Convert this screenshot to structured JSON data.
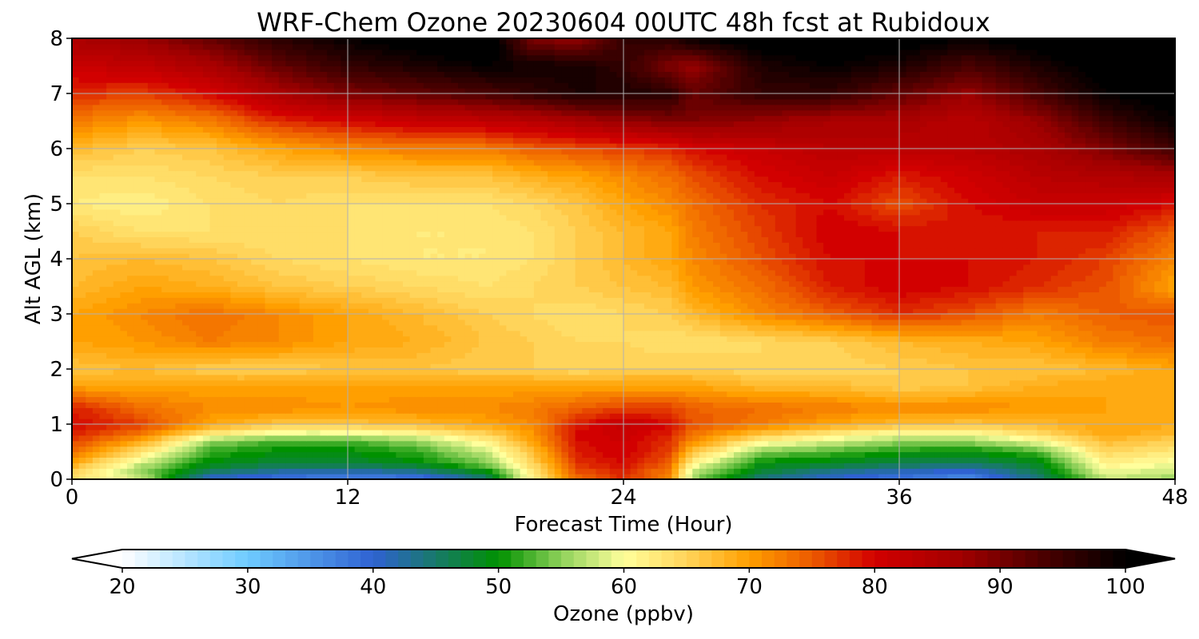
{
  "chart_data": {
    "type": "heatmap",
    "title": "WRF-Chem Ozone  20230604 00UTC 48h fcst at Rubidoux",
    "xlabel": "Forecast Time (Hour)",
    "ylabel": "Alt AGL (km)",
    "xlim": [
      0,
      48
    ],
    "ylim": [
      0,
      8
    ],
    "x_ticks": [
      0,
      12,
      24,
      36,
      48
    ],
    "y_ticks": [
      0,
      1,
      2,
      3,
      4,
      5,
      6,
      7,
      8
    ],
    "grid": true,
    "z_label": "Ozone  (ppbv)",
    "colorbar": {
      "orientation": "horizontal",
      "position": "bottom",
      "extend": "both",
      "range": [
        20,
        100
      ],
      "ticks": [
        20,
        30,
        40,
        50,
        60,
        70,
        80,
        90,
        100
      ],
      "under_color": "#ffffff",
      "over_color": "#000000",
      "color_stops": [
        {
          "v": 20,
          "c": "#ffffff"
        },
        {
          "v": 30,
          "c": "#6ecbff"
        },
        {
          "v": 40,
          "c": "#2f62d2"
        },
        {
          "v": 50,
          "c": "#009100"
        },
        {
          "v": 55,
          "c": "#8fd15a"
        },
        {
          "v": 60,
          "c": "#ffff9c"
        },
        {
          "v": 65,
          "c": "#ffd45a"
        },
        {
          "v": 70,
          "c": "#ff9f00"
        },
        {
          "v": 75,
          "c": "#ec5a00"
        },
        {
          "v": 80,
          "c": "#d20000"
        },
        {
          "v": 87,
          "c": "#a00000"
        },
        {
          "v": 93,
          "c": "#500000"
        },
        {
          "v": 100,
          "c": "#000000"
        }
      ]
    },
    "z_grid": {
      "x": [
        0,
        3,
        6,
        9,
        12,
        15,
        18,
        20,
        22,
        24,
        26,
        27,
        30,
        33,
        36,
        39,
        42,
        45,
        48
      ],
      "y": [
        0,
        0.15,
        0.3,
        0.5,
        0.7,
        0.85,
        1.0,
        1.3,
        1.7,
        2.0,
        2.5,
        3.0,
        3.5,
        4.0,
        4.5,
        5.0,
        5.5,
        6.0,
        6.5,
        7.0,
        7.5,
        8.0
      ],
      "z": [
        [
          64,
          58,
          40,
          38,
          36,
          37,
          44,
          62,
          74,
          78,
          72,
          56,
          44,
          40,
          38,
          36,
          44,
          58,
          56
        ],
        [
          66,
          56,
          46,
          43,
          42,
          44,
          50,
          63,
          76,
          79,
          73,
          58,
          48,
          44,
          42,
          40,
          47,
          60,
          58
        ],
        [
          70,
          58,
          50,
          48,
          48,
          50,
          55,
          65,
          78,
          80,
          75,
          62,
          50,
          49,
          47,
          46,
          49,
          62,
          60
        ],
        [
          74,
          64,
          52,
          50,
          50,
          52,
          58,
          67,
          79,
          81,
          77,
          67,
          55,
          53,
          51,
          50,
          53,
          65,
          63
        ],
        [
          77,
          70,
          56,
          53,
          53,
          56,
          62,
          70,
          80,
          81,
          78,
          72,
          62,
          59,
          56,
          56,
          60,
          68,
          66
        ],
        [
          79,
          74,
          64,
          60,
          60,
          62,
          66,
          71,
          80,
          82,
          79,
          74,
          68,
          64,
          61,
          61,
          65,
          70,
          68
        ],
        [
          80,
          77,
          70,
          67,
          67,
          68,
          70,
          72,
          79,
          83,
          80,
          76,
          73,
          70,
          68,
          67,
          68,
          70,
          69
        ],
        [
          79,
          74,
          72,
          72,
          71,
          72,
          72,
          73,
          75,
          77,
          77,
          75,
          74,
          73,
          72,
          72,
          71,
          70,
          70
        ],
        [
          70,
          70,
          70,
          70,
          70,
          70,
          70,
          70,
          70,
          70,
          70,
          70,
          68,
          68,
          66,
          67,
          69,
          70,
          69
        ],
        [
          67,
          68,
          66,
          66,
          67,
          67,
          66,
          66,
          65,
          66,
          66,
          66,
          65,
          65,
          66,
          67,
          67,
          68,
          70
        ],
        [
          70,
          71,
          73,
          72,
          70,
          69,
          67,
          66,
          65,
          65,
          64,
          64,
          65,
          66,
          68,
          69,
          70,
          73,
          74
        ],
        [
          70,
          72,
          74,
          72,
          70,
          68,
          66,
          65,
          64,
          65,
          66,
          68,
          72,
          75,
          78,
          76,
          73,
          75,
          76
        ],
        [
          68,
          70,
          69,
          67,
          66,
          65,
          64,
          65,
          66,
          67,
          68,
          71,
          74,
          79,
          81,
          80,
          78,
          76,
          70
        ],
        [
          67,
          68,
          67,
          65,
          64,
          63,
          63,
          64,
          66,
          68,
          70,
          72,
          76,
          80,
          80,
          80,
          79,
          77,
          72
        ],
        [
          66,
          64,
          64,
          64,
          64,
          63,
          63,
          64,
          66,
          68,
          70,
          73,
          77,
          81,
          80,
          79,
          79,
          79,
          75
        ],
        [
          63,
          62,
          64,
          65,
          64,
          64,
          64,
          65,
          67,
          70,
          72,
          74,
          78,
          80,
          76,
          80,
          82,
          82,
          80
        ],
        [
          64,
          64,
          65,
          66,
          66,
          67,
          67,
          69,
          70,
          72,
          74,
          76,
          80,
          82,
          79,
          81,
          84,
          85,
          86
        ],
        [
          68,
          66,
          67,
          70,
          72,
          73,
          73,
          75,
          76,
          77,
          78,
          80,
          82,
          84,
          84,
          84,
          86,
          90,
          95
        ],
        [
          73,
          71,
          73,
          78,
          80,
          82,
          83,
          84,
          86,
          88,
          90,
          90,
          88,
          86,
          86,
          84,
          88,
          95,
          100
        ],
        [
          78,
          77,
          80,
          86,
          90,
          92,
          94,
          96,
          98,
          98,
          97,
          92,
          96,
          96,
          92,
          88,
          94,
          100,
          102
        ],
        [
          82,
          83,
          86,
          92,
          96,
          98,
          100,
          99,
          99,
          96,
          90,
          88,
          98,
          100,
          98,
          94,
          98,
          102,
          104
        ],
        [
          86,
          88,
          92,
          97,
          100,
          102,
          104,
          90,
          88,
          96,
          97,
          100,
          102,
          103,
          102,
          100,
          102,
          104,
          105
        ]
      ]
    }
  }
}
